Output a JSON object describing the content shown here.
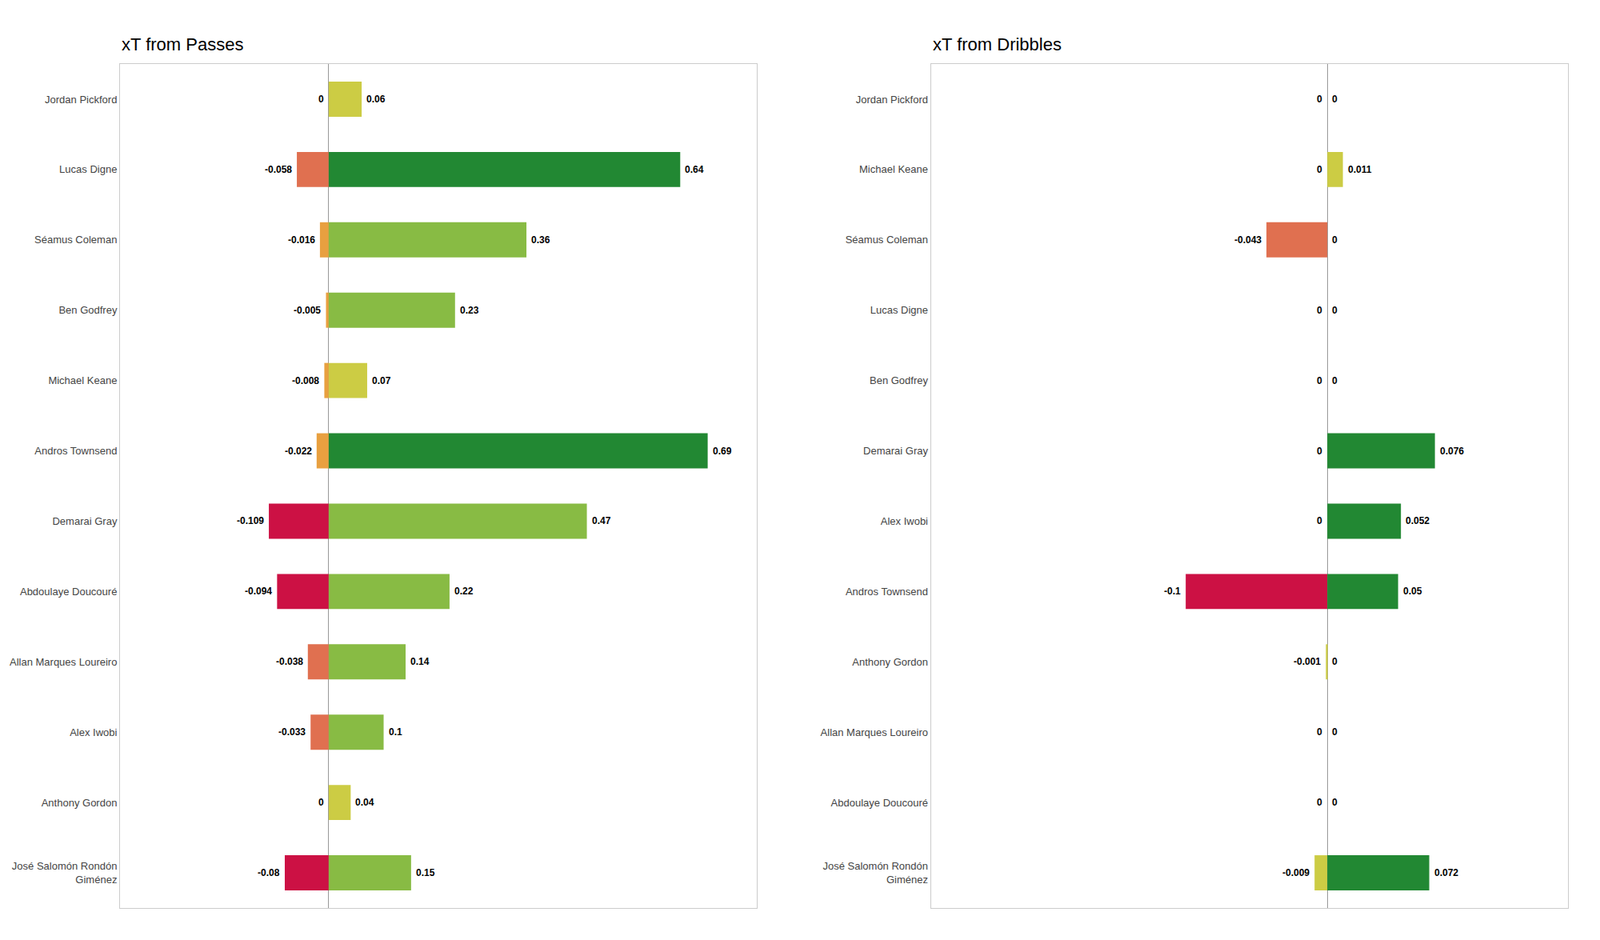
{
  "chart_data": [
    {
      "type": "bar",
      "orientation": "horizontal",
      "title": "xT from Passes",
      "categories": [
        "Jordan Pickford",
        "Lucas Digne",
        "Séamus Coleman",
        "Ben Godfrey",
        "Michael Keane",
        "Andros Townsend",
        "Demarai Gray",
        "Abdoulaye Doucouré",
        "Allan Marques Loureiro",
        "Alex Iwobi",
        "Anthony Gordon",
        "José Salomón Rondón\nGiménez"
      ],
      "series": [
        {
          "values": [
            0.0,
            -0.058,
            -0.016,
            -0.005,
            -0.008,
            -0.022,
            -0.109,
            -0.094,
            -0.038,
            -0.033,
            0.0,
            -0.08
          ],
          "colors": [
            null,
            "#E07050",
            "#E8A040",
            "#E8A040",
            "#E8A040",
            "#E8A040",
            "#CC1144",
            "#CC1144",
            "#E07050",
            "#E07050",
            null,
            "#CC1144"
          ]
        },
        {
          "values": [
            0.06,
            0.64,
            0.36,
            0.23,
            0.07,
            0.69,
            0.47,
            0.22,
            0.14,
            0.1,
            0.04,
            0.15
          ],
          "colors": [
            "#CCCC44",
            "#228833",
            "#88BB44",
            "#88BB44",
            "#CCCC44",
            "#228833",
            "#88BB44",
            "#88BB44",
            "#88BB44",
            "#88BB44",
            "#CCCC44",
            "#88BB44"
          ]
        }
      ],
      "xlim": [
        -0.38,
        0.78
      ],
      "tick_labels": "y",
      "grid": false,
      "data_labels": true
    },
    {
      "type": "bar",
      "orientation": "horizontal",
      "title": "xT from Dribbles",
      "categories": [
        "Jordan Pickford",
        "Michael Keane",
        "Séamus Coleman",
        "Lucas Digne",
        "Ben Godfrey",
        "Demarai Gray",
        "Alex Iwobi",
        "Andros Townsend",
        "Anthony Gordon",
        "Allan Marques Loureiro",
        "Abdoulaye Doucouré",
        "José Salomón Rondón\nGiménez"
      ],
      "series": [
        {
          "values": [
            0.0,
            0.0,
            -0.043,
            0.0,
            0.0,
            0.0,
            0.0,
            -0.1,
            -0.001,
            0.0,
            0.0,
            -0.009
          ],
          "colors": [
            null,
            null,
            "#E07050",
            null,
            null,
            null,
            null,
            "#CC1144",
            "#CCCC44",
            null,
            null,
            "#CCCC44"
          ]
        },
        {
          "values": [
            0.0,
            0.011,
            0.0,
            0.0,
            0.0,
            0.076,
            0.052,
            0.05,
            0.0,
            0.0,
            0.0,
            0.072
          ],
          "colors": [
            null,
            "#CCCC44",
            null,
            null,
            null,
            "#228833",
            "#228833",
            "#228833",
            null,
            null,
            null,
            "#228833"
          ]
        }
      ],
      "xlim": [
        -0.28,
        0.17
      ],
      "tick_labels": "y",
      "grid": false,
      "data_labels": true
    }
  ]
}
